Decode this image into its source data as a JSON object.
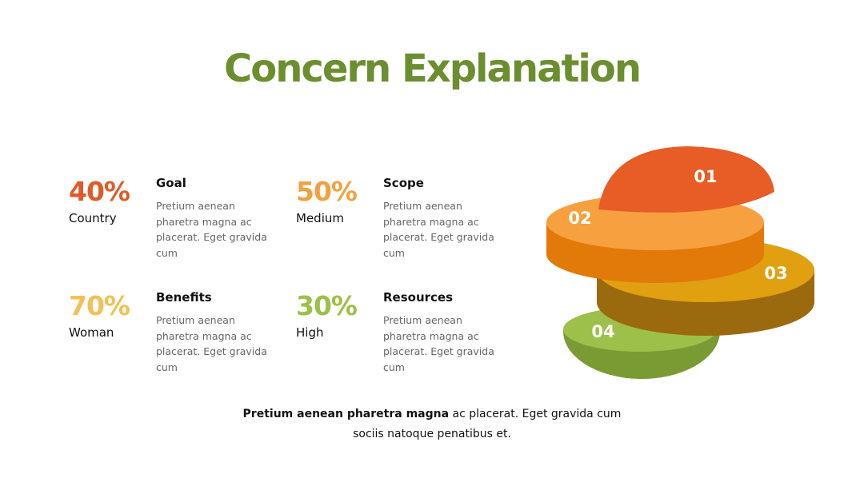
{
  "header": {
    "title": "Concern Explanation"
  },
  "items": [
    {
      "percent": "40%",
      "label": "Country",
      "heading": "Goal",
      "body": "Pretium aenean pharetra magna ac placerat. Eget gravida cum",
      "color": "#e05a28"
    },
    {
      "percent": "50%",
      "label": "Medium",
      "heading": "Scope",
      "body": "Pretium aenean pharetra magna ac placerat. Eget gravida cum",
      "color": "#f4a040"
    },
    {
      "percent": "70%",
      "label": "Woman",
      "heading": "Benefits",
      "body": "Pretium aenean pharetra magna ac placerat. Eget gravida cum",
      "color": "#f2c055"
    },
    {
      "percent": "30%",
      "label": "High",
      "heading": "Resources",
      "body": "Pretium aenean pharetra magna ac placerat. Eget gravida cum",
      "color": "#9cc04a"
    }
  ],
  "diagram": {
    "layers": [
      "01",
      "02",
      "03",
      "04"
    ]
  },
  "footer": {
    "emphasis": "Pretium aenean pharetra magna",
    "text": "ac placerat. Eget gravida cum",
    "line2": "sociis natoque penatibus et."
  }
}
